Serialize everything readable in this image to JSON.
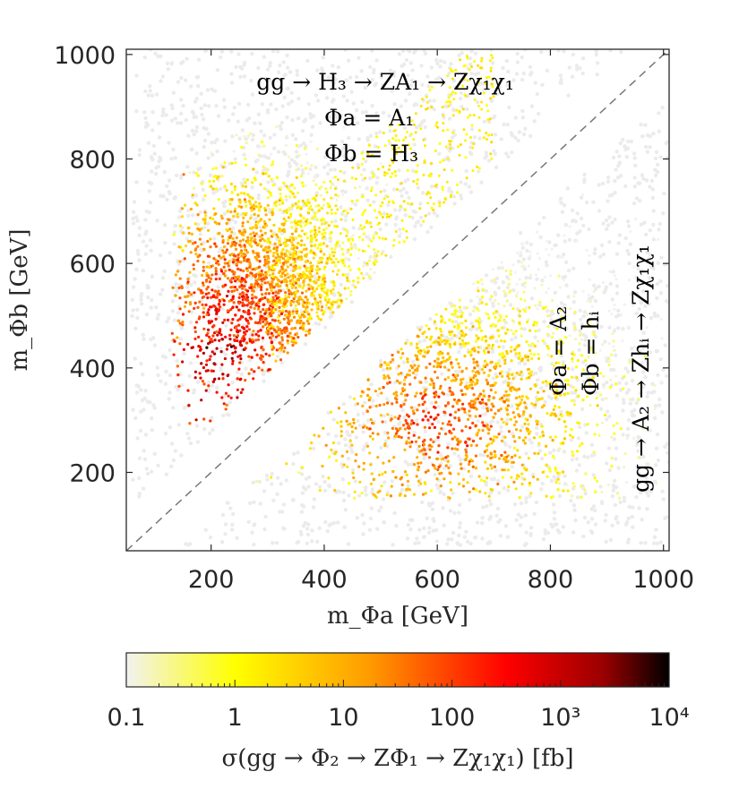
{
  "chart_data": {
    "type": "scatter",
    "xlabel": "m_Φa [GeV]",
    "ylabel": "m_Φb [GeV]",
    "xlim": [
      50,
      1010
    ],
    "ylim": [
      50,
      1010
    ],
    "xticks": [
      "200",
      "400",
      "600",
      "800",
      "1000"
    ],
    "yticks": [
      "200",
      "400",
      "600",
      "800",
      "1000"
    ],
    "xtick_values": [
      200,
      400,
      600,
      800,
      1000
    ],
    "ytick_values": [
      200,
      400,
      600,
      800,
      1000
    ],
    "diagonal": "m_Φa = m_Φb (dashed)",
    "annotations": {
      "upper_process": "gg → H₃ → ZA₁ → Zχ₁χ₁",
      "upper_phi_a": "Φa = A₁",
      "upper_phi_b": "Φb = H₃",
      "lower_process": "gg → A₂ → Zhᵢ → Zχ₁χ₁",
      "lower_phi_a": "Φa = A₂",
      "lower_phi_b": "Φb = hᵢ"
    },
    "colorbar": {
      "label": "σ(gg → Φ₂ → ZΦ₁ → Zχ₁χ₁) [fb]",
      "scale": "log",
      "range": [
        0.1,
        10000
      ],
      "tick_labels": [
        "0.1",
        "1",
        "10",
        "100",
        "10³",
        "10⁴"
      ],
      "tick_values": [
        0.1,
        1,
        10,
        100,
        1000,
        10000
      ],
      "colormap": [
        "#f2f2f2",
        "#ffff00",
        "#ff9a00",
        "#ff0000",
        "#990000",
        "#000000"
      ]
    },
    "regions": [
      {
        "name": "upper-left cluster",
        "center": [
          300,
          560
        ],
        "peak_sigma_fb": 5000,
        "min_mass": 130
      },
      {
        "name": "lower-right cluster",
        "center": [
          620,
          330
        ],
        "peak_sigma_fb": 500
      }
    ]
  }
}
